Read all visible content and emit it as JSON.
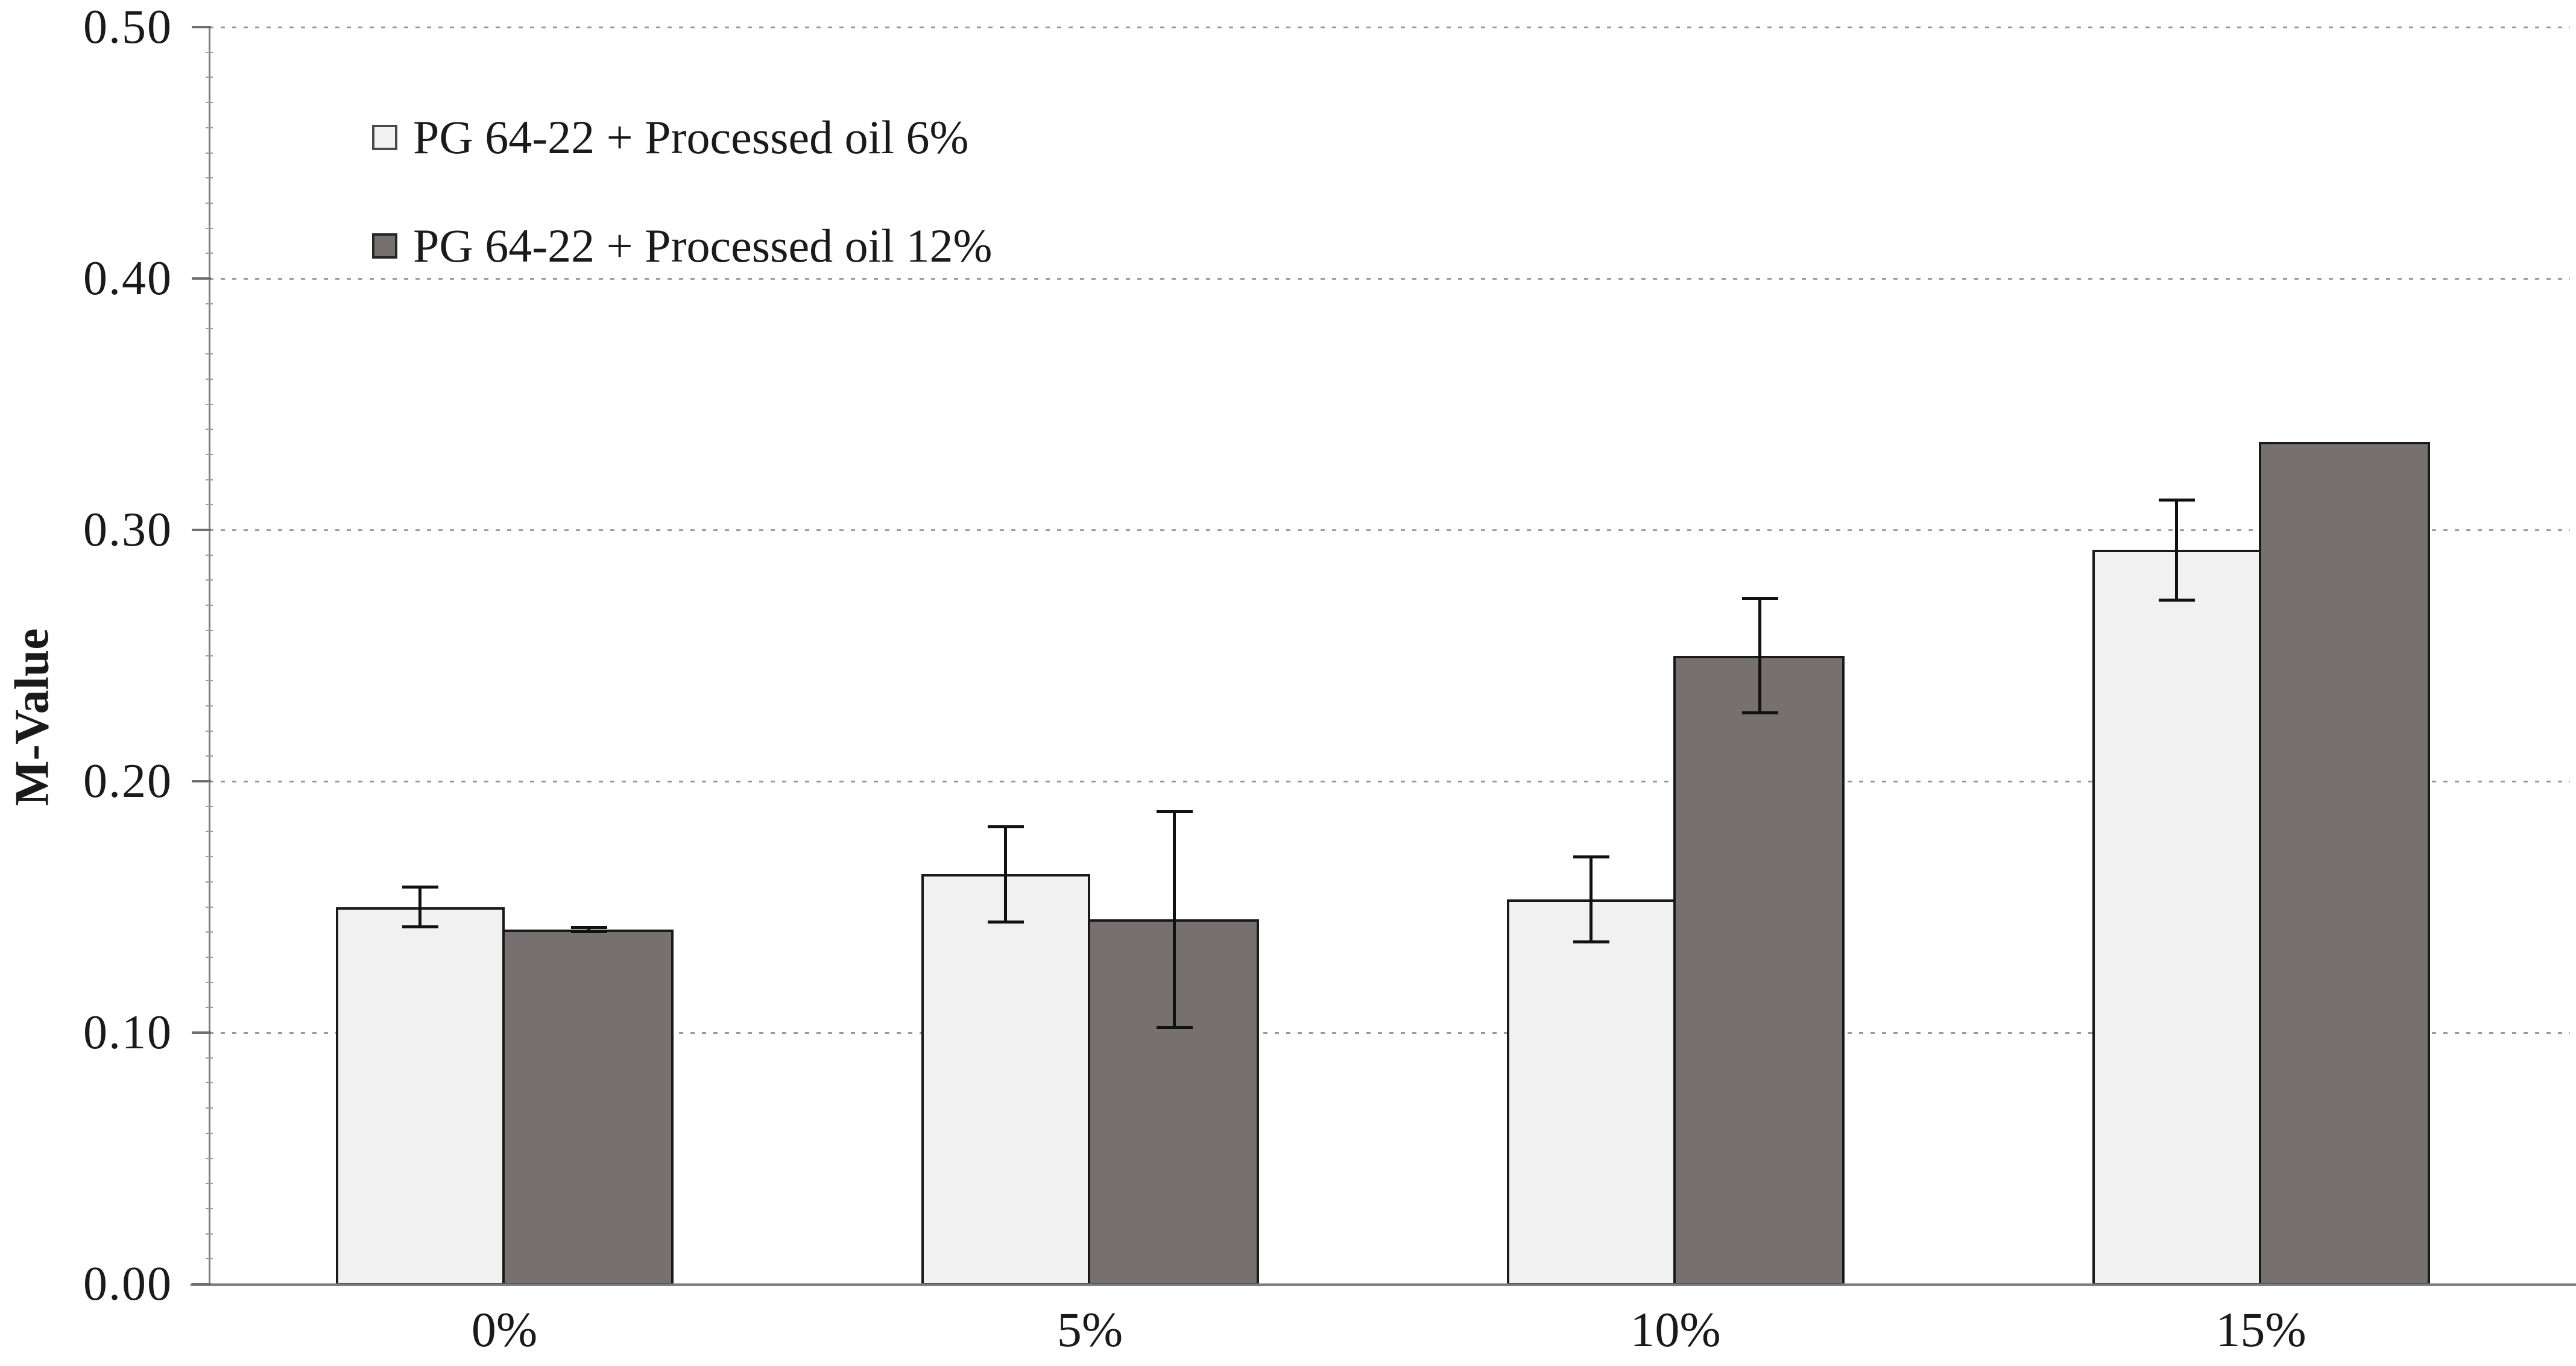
{
  "chart_data": {
    "type": "bar",
    "title": "",
    "categories": [
      "0%",
      "5%",
      "10%",
      "15%"
    ],
    "series": [
      {
        "name": "PG 64-22 + Processed oil 6%",
        "fill": "#f1f1f1",
        "values": [
          0.15,
          0.163,
          0.153,
          0.292
        ],
        "errors": [
          0.008,
          0.019,
          0.017,
          0.02
        ]
      },
      {
        "name": "PG 64-22 + Processed oil 12%",
        "fill": "#767170",
        "values": [
          0.141,
          0.145,
          0.25,
          0.335
        ],
        "errors": [
          0.001,
          0.043,
          0.023,
          null
        ]
      }
    ],
    "xlabel": "",
    "ylabel": "M-Value",
    "ylim": [
      0.0,
      0.5
    ],
    "ytick_step": 0.1,
    "yticks": [
      "0.00",
      "0.10",
      "0.20",
      "0.30",
      "0.40",
      "0.50"
    ],
    "grid": "horizontal-dashed",
    "legend_position": "inside-top-left",
    "colors": {
      "bar_edge": "#1a1a1a",
      "error_bar": "#111111",
      "axis": "#7e7e7e",
      "gridline": "#9a9a9a",
      "series_light": "#f1f1f1",
      "series_dark": "#767170"
    }
  }
}
